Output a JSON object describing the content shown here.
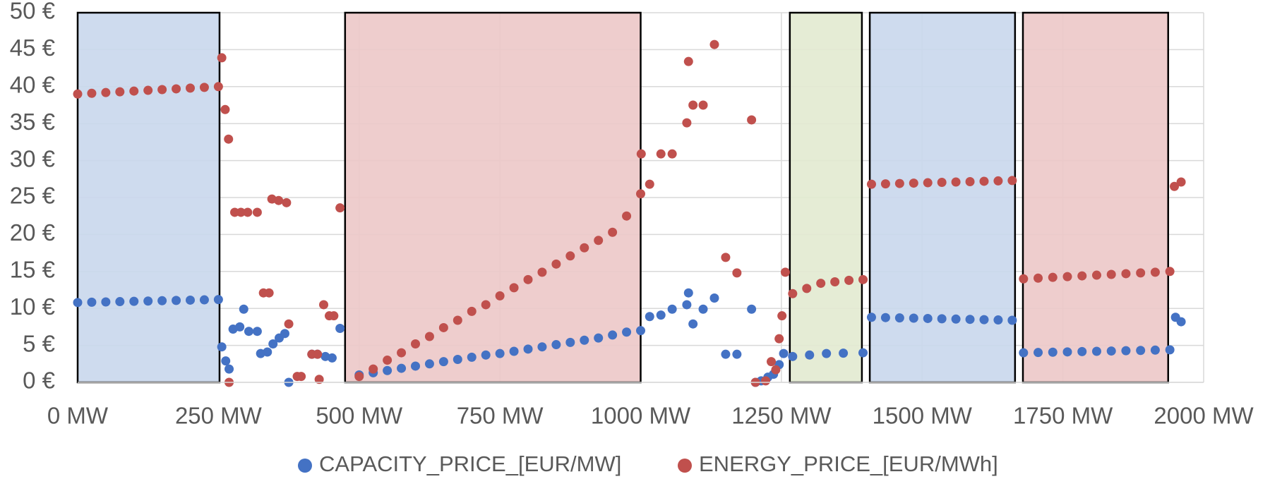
{
  "chart_data": {
    "type": "scatter",
    "xlim": [
      0,
      2000
    ],
    "ylim": [
      0,
      50
    ],
    "xticks": [
      {
        "value": 0,
        "label": "0 MW"
      },
      {
        "value": 250,
        "label": "250 MW"
      },
      {
        "value": 500,
        "label": "500 MW"
      },
      {
        "value": 750,
        "label": "750 MW"
      },
      {
        "value": 1000,
        "label": "1000 MW"
      },
      {
        "value": 1250,
        "label": "1250 MW"
      },
      {
        "value": 1500,
        "label": "1500 MW"
      },
      {
        "value": 1750,
        "label": "1750 MW"
      },
      {
        "value": 2000,
        "label": "2000 MW"
      }
    ],
    "yticks": [
      {
        "value": 0,
        "label": "0 €"
      },
      {
        "value": 5,
        "label": "5 €"
      },
      {
        "value": 10,
        "label": "10 €"
      },
      {
        "value": 15,
        "label": "15 €"
      },
      {
        "value": 20,
        "label": "20 €"
      },
      {
        "value": 25,
        "label": "25 €"
      },
      {
        "value": 30,
        "label": "30 €"
      },
      {
        "value": 35,
        "label": "35 €"
      },
      {
        "value": 40,
        "label": "40 €"
      },
      {
        "value": 45,
        "label": "45 €"
      },
      {
        "value": 50,
        "label": "50 €"
      }
    ],
    "grid": true,
    "legend": "bottom",
    "regions": [
      {
        "x": [
          0,
          252
        ],
        "color": "#c9d7ec"
      },
      {
        "x": [
          475,
          1000
        ],
        "color": "#ecc8c8"
      },
      {
        "x": [
          1265,
          1393
        ],
        "color": "#e2ead0"
      },
      {
        "x": [
          1407,
          1665
        ],
        "color": "#c9d7ec"
      },
      {
        "x": [
          1679,
          1937
        ],
        "color": "#ecc8c8"
      }
    ],
    "series": [
      {
        "name": "CAPACITY_PRICE_[EUR/MW]",
        "color": "#4472c4",
        "x": [
          0,
          25,
          50,
          75,
          100,
          125,
          150,
          175,
          200,
          225,
          250,
          256,
          263,
          269,
          276,
          288,
          295,
          304,
          319,
          325,
          337,
          347,
          358,
          368,
          375,
          416,
          426,
          440,
          452,
          466,
          500,
          525,
          550,
          575,
          600,
          625,
          650,
          675,
          700,
          725,
          750,
          775,
          800,
          825,
          850,
          875,
          900,
          925,
          950,
          975,
          1000,
          1016,
          1036,
          1056,
          1082,
          1085,
          1093,
          1111,
          1131,
          1151,
          1171,
          1197,
          1204,
          1214,
          1226,
          1236,
          1246,
          1254,
          1270,
          1300,
          1330,
          1360,
          1395,
          1410,
          1435,
          1460,
          1485,
          1510,
          1535,
          1560,
          1585,
          1610,
          1635,
          1660,
          1680,
          1706,
          1732,
          1758,
          1784,
          1810,
          1836,
          1862,
          1888,
          1914,
          1940,
          1950,
          1960
        ],
        "values": [
          10.8,
          10.84,
          10.88,
          10.92,
          10.96,
          11.0,
          11.04,
          11.08,
          11.12,
          11.16,
          11.2,
          4.8,
          2.9,
          1.8,
          7.2,
          7.5,
          9.9,
          6.9,
          6.9,
          3.9,
          4.1,
          5.2,
          6.0,
          6.6,
          0,
          3.8,
          3.8,
          3.5,
          3.3,
          7.3,
          1.0,
          1.3,
          1.6,
          1.9,
          2.2,
          2.5,
          2.8,
          3.1,
          3.4,
          3.7,
          3.9,
          4.2,
          4.5,
          4.8,
          5.1,
          5.4,
          5.7,
          6.0,
          6.4,
          6.8,
          7.0,
          8.9,
          9.1,
          9.9,
          10.5,
          12.1,
          7.9,
          9.9,
          11.4,
          3.8,
          3.8,
          9.9,
          0,
          0.2,
          0.7,
          1.1,
          2.4,
          3.9,
          3.5,
          3.7,
          3.9,
          3.95,
          4.0,
          8.8,
          8.76,
          8.72,
          8.68,
          8.64,
          8.6,
          8.56,
          8.52,
          8.48,
          8.44,
          8.4,
          4.0,
          4.04,
          4.08,
          4.12,
          4.16,
          4.2,
          4.24,
          4.28,
          4.32,
          4.36,
          4.4,
          8.8,
          8.2
        ]
      },
      {
        "name": "ENERGY_PRICE_[EUR/MWh]",
        "color": "#c0504d",
        "x": [
          0,
          25,
          50,
          75,
          100,
          125,
          150,
          175,
          200,
          225,
          250,
          256,
          262,
          268,
          269,
          279,
          290,
          302,
          319,
          330,
          340,
          345,
          357,
          371,
          375,
          390,
          397,
          416,
          426,
          429,
          437,
          447,
          455,
          466,
          500,
          525,
          550,
          575,
          600,
          625,
          650,
          675,
          700,
          725,
          750,
          775,
          800,
          825,
          850,
          875,
          900,
          925,
          950,
          975,
          1000,
          1001,
          1016,
          1036,
          1056,
          1082,
          1085,
          1093,
          1111,
          1131,
          1151,
          1171,
          1197,
          1204,
          1222,
          1232,
          1240,
          1246,
          1251,
          1257,
          1270,
          1295,
          1320,
          1345,
          1370,
          1395,
          1410,
          1435,
          1460,
          1485,
          1510,
          1535,
          1560,
          1585,
          1610,
          1635,
          1660,
          1680,
          1706,
          1732,
          1758,
          1784,
          1810,
          1836,
          1862,
          1888,
          1914,
          1940,
          1948,
          1960
        ],
        "values": [
          39.0,
          39.1,
          39.2,
          39.3,
          39.4,
          39.5,
          39.6,
          39.7,
          39.8,
          39.9,
          40.0,
          43.9,
          36.9,
          32.9,
          0,
          23.0,
          23.0,
          23.0,
          23.0,
          12.1,
          12.1,
          24.8,
          24.6,
          24.3,
          7.9,
          0.8,
          0.8,
          3.8,
          3.8,
          0.4,
          10.5,
          9.0,
          9.0,
          23.6,
          0.8,
          1.8,
          3.0,
          4.0,
          5.2,
          6.2,
          7.4,
          8.4,
          9.6,
          10.5,
          11.7,
          12.8,
          13.9,
          14.9,
          16.0,
          17.1,
          18.2,
          19.2,
          20.3,
          22.5,
          25.5,
          30.9,
          26.8,
          30.9,
          30.9,
          35.1,
          43.4,
          37.5,
          37.5,
          45.7,
          16.9,
          14.8,
          35.5,
          0,
          0.2,
          2.8,
          1.7,
          5.9,
          9.0,
          14.9,
          12.0,
          12.7,
          13.4,
          13.6,
          13.8,
          13.9,
          26.8,
          26.85,
          26.9,
          26.95,
          27.0,
          27.05,
          27.1,
          27.15,
          27.2,
          27.25,
          27.3,
          14.0,
          14.1,
          14.2,
          14.3,
          14.4,
          14.5,
          14.6,
          14.7,
          14.8,
          14.9,
          15.0,
          26.5,
          27.1
        ]
      }
    ]
  }
}
